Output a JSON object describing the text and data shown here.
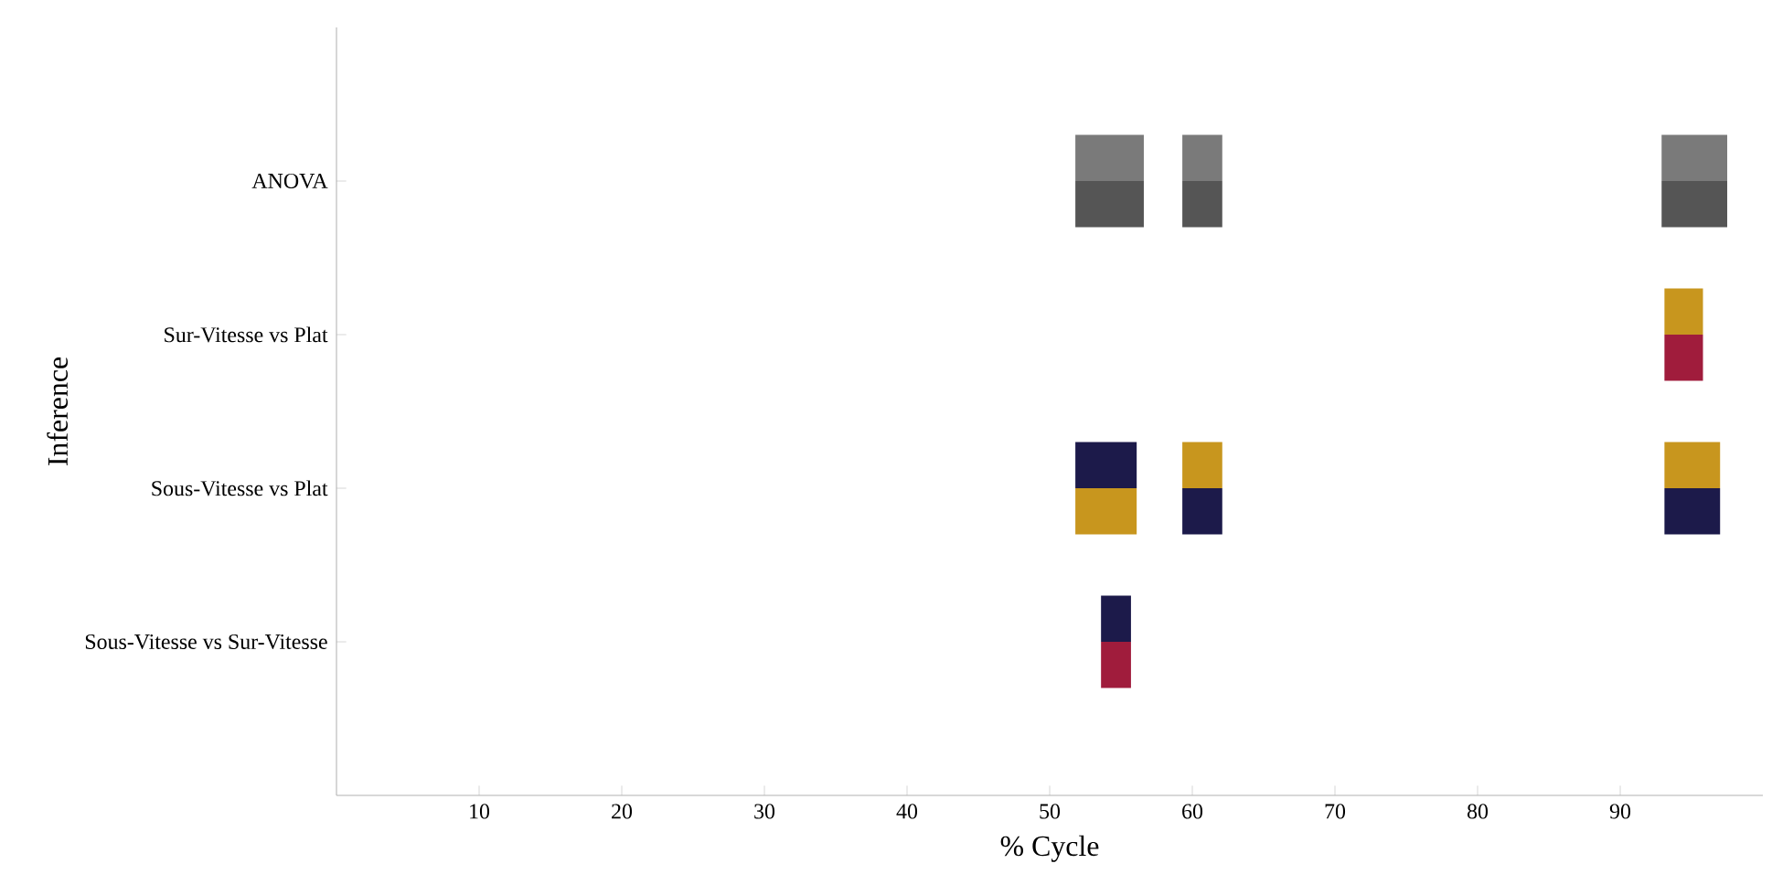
{
  "chart_data": {
    "type": "bar",
    "orientation": "horizontal",
    "xlabel": "% Cycle",
    "ylabel": "Inference",
    "categories": [
      "ANOVA",
      "Sur-Vitesse vs Plat",
      "Sous-Vitesse vs Plat",
      "Sous-Vitesse vs Sur-Vitesse"
    ],
    "xlim": [
      0,
      100
    ],
    "xticks": [
      10,
      20,
      30,
      40,
      50,
      60,
      70,
      80,
      90
    ],
    "series": [
      {
        "base": [
          51.8,
          null,
          51.8,
          53.6
        ],
        "values": [
          4.8,
          null,
          4.3,
          2.1
        ],
        "colors": [
          "#7a7a7a",
          null,
          "#1c1a4a",
          "#1c1a4a"
        ]
      },
      {
        "base": [
          59.3,
          null,
          59.3,
          null
        ],
        "values": [
          2.8,
          null,
          2.8,
          null
        ],
        "colors": [
          "#7a7a7a",
          null,
          "#c8961e",
          null
        ]
      },
      {
        "base": [
          92.9,
          93.1,
          93.1,
          null
        ],
        "values": [
          4.6,
          2.7,
          3.9,
          null
        ],
        "colors": [
          "#7a7a7a",
          "#c8961e",
          "#c8961e",
          null
        ]
      },
      {
        "base": [
          51.8,
          null,
          51.8,
          53.6
        ],
        "values": [
          4.8,
          null,
          4.3,
          2.1
        ],
        "colors": [
          "#555555",
          null,
          "#c8961e",
          "#a01c3c"
        ]
      },
      {
        "base": [
          59.3,
          null,
          59.3,
          null
        ],
        "values": [
          2.8,
          null,
          2.8,
          null
        ],
        "colors": [
          "#555555",
          null,
          "#1c1a4a",
          null
        ]
      },
      {
        "base": [
          92.9,
          93.1,
          93.1,
          null
        ],
        "values": [
          4.6,
          2.7,
          3.9,
          null
        ],
        "colors": [
          "#555555",
          "#a01c3c",
          "#1c1a4a",
          null
        ]
      }
    ]
  }
}
